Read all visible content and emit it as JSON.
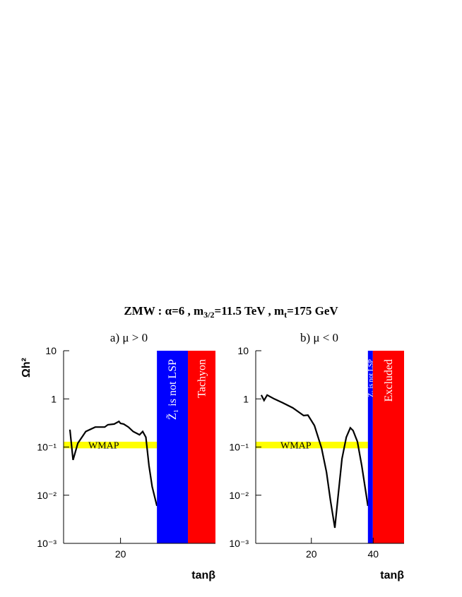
{
  "title": [
    "ZMW : α=6 ,  m",
    "3/2",
    "=11.5 TeV ,  m",
    "t",
    "=175 GeV"
  ],
  "chart_data": [
    {
      "type": "line",
      "title": "a) μ > 0",
      "xlabel": "tanβ",
      "ylabel": "Ωh²",
      "log_y": true,
      "xlim": [
        2,
        50
      ],
      "xticks": [
        20
      ],
      "ylim": [
        0.001,
        10
      ],
      "yticks": [
        {
          "value": 0.001,
          "label": "10⁻³"
        },
        {
          "value": 0.01,
          "label": "10⁻²"
        },
        {
          "value": 0.1,
          "label": "10⁻¹"
        },
        1,
        10
      ],
      "color": "#000000",
      "x": [
        4,
        5,
        6.5,
        9,
        12,
        15,
        16,
        18,
        19.5,
        20,
        21,
        22.5,
        24,
        26,
        27,
        28,
        29,
        30,
        31.5
      ],
      "values": [
        0.23,
        0.054,
        0.12,
        0.21,
        0.26,
        0.26,
        0.29,
        0.3,
        0.34,
        0.31,
        0.3,
        0.26,
        0.21,
        0.18,
        0.21,
        0.16,
        0.041,
        0.015,
        0.006
      ],
      "wmap": {
        "label": "WMAP",
        "range": [
          0.094,
          0.129
        ],
        "color": "#ffff00"
      },
      "regions": [
        {
          "label": "Z̃₁ is not LSP",
          "xrange": [
            31.5,
            41.3
          ],
          "color": "#0000ff"
        },
        {
          "label": "Tachyon",
          "xrange": [
            41.3,
            50
          ],
          "color": "#ff0000"
        }
      ]
    },
    {
      "type": "line",
      "title": "b)  μ < 0",
      "xlabel": "tanβ",
      "log_y": true,
      "xlim": [
        2,
        50
      ],
      "xticks": [
        20,
        40
      ],
      "ylim": [
        0.001,
        10
      ],
      "yticks": [
        {
          "value": 0.001,
          "label": "10⁻³"
        },
        {
          "value": 0.01,
          "label": "10⁻²"
        },
        {
          "value": 0.1,
          "label": "10⁻¹"
        },
        1,
        10
      ],
      "color": "#000000",
      "x": [
        3.8,
        4.7,
        5.7,
        8,
        10.7,
        14,
        17.5,
        18.9,
        21,
        23.3,
        24.9,
        26.2,
        27.6,
        28.5,
        29.9,
        31.3,
        32.6,
        33.5,
        34.9,
        36.3,
        37.7,
        38.3
      ],
      "values": [
        1.2,
        0.93,
        1.2,
        1.0,
        0.83,
        0.65,
        0.45,
        0.46,
        0.28,
        0.095,
        0.03,
        0.0076,
        0.0021,
        0.0076,
        0.057,
        0.16,
        0.25,
        0.22,
        0.13,
        0.041,
        0.0107,
        0.006
      ],
      "wmap": {
        "label": "WMAP",
        "range": [
          0.094,
          0.129
        ],
        "color": "#ffff00"
      },
      "regions": [
        {
          "label": "Z̃₁ is not LSP",
          "xrange": [
            38.3,
            39.9
          ],
          "color": "#0000ff"
        },
        {
          "label": "Excluded",
          "xrange": [
            39.9,
            50
          ],
          "color": "#ff0000"
        }
      ]
    }
  ]
}
